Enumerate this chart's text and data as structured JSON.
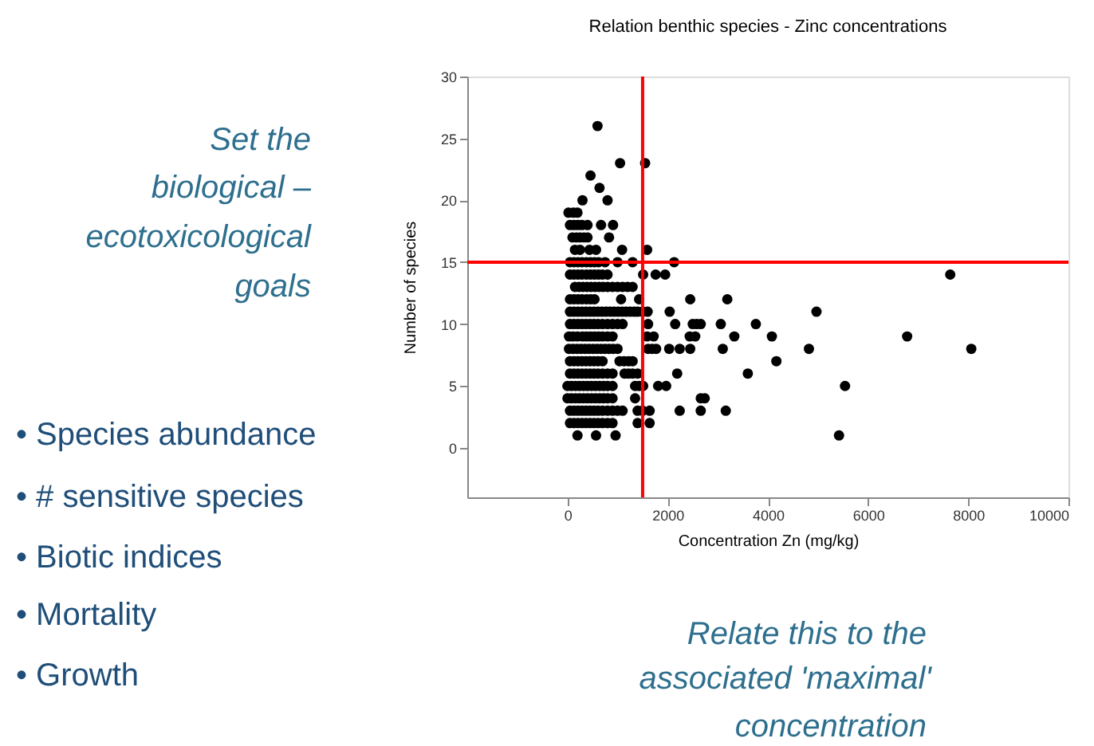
{
  "chart_data": {
    "type": "scatter",
    "title": "Relation benthic species - Zinc concentrations",
    "xlabel": "Concentration Zn (mg/kg)",
    "ylabel": "Number of species",
    "xlim": [
      -2000,
      10000
    ],
    "xticks": [
      0,
      2000,
      4000,
      6000,
      8000,
      10000
    ],
    "ylim": [
      -4,
      30
    ],
    "yticks": [
      0,
      5,
      10,
      15,
      20,
      25,
      30
    ],
    "grid": false,
    "marker": "circle",
    "series": [
      {
        "color": "#000000",
        "x": [
          600,
          1050,
          1550,
          460,
          640,
          300,
          800,
          20,
          120,
          200,
          50,
          130,
          210,
          290,
          400,
          670,
          910,
          100,
          180,
          250,
          330,
          400,
          830,
          150,
          250,
          440,
          570,
          1090,
          1590,
          50,
          130,
          210,
          290,
          380,
          460,
          540,
          620,
          750,
          1000,
          1300,
          2130,
          50,
          130,
          210,
          290,
          380,
          460,
          540,
          620,
          700,
          800,
          1510,
          1760,
          1950,
          7640,
          150,
          230,
          310,
          390,
          470,
          550,
          630,
          710,
          800,
          900,
          1000,
          1100,
          1200,
          1300,
          50,
          130,
          210,
          290,
          380,
          460,
          540,
          1070,
          1430,
          2450,
          3190,
          50,
          130,
          210,
          290,
          370,
          450,
          530,
          610,
          690,
          770,
          850,
          930,
          1010,
          1090,
          1170,
          1250,
          1330,
          1400,
          1500,
          1600,
          2040,
          4970,
          50,
          130,
          210,
          290,
          370,
          450,
          530,
          610,
          700,
          800,
          900,
          1000,
          1100,
          1610,
          2150,
          2500,
          2580,
          2660,
          3060,
          3760,
          30,
          110,
          200,
          300,
          380,
          460,
          540,
          620,
          700,
          800,
          900,
          1590,
          1720,
          2440,
          2550,
          3330,
          4080,
          6780,
          30,
          110,
          190,
          270,
          350,
          430,
          510,
          590,
          670,
          750,
          830,
          910,
          1000,
          1610,
          1690,
          1770,
          2030,
          2240,
          2450,
          3100,
          4820,
          8060,
          50,
          130,
          210,
          290,
          370,
          450,
          530,
          610,
          700,
          1040,
          1130,
          1220,
          1300,
          4170,
          50,
          130,
          210,
          290,
          370,
          450,
          530,
          610,
          700,
          800,
          900,
          1140,
          1220,
          1300,
          1400,
          2190,
          3600,
          0,
          80,
          160,
          240,
          320,
          400,
          480,
          560,
          640,
          720,
          800,
          900,
          1350,
          1430,
          1510,
          1810,
          1970,
          5540,
          0,
          80,
          160,
          240,
          320,
          400,
          480,
          560,
          640,
          720,
          800,
          900,
          1350,
          2660,
          2740,
          50,
          130,
          210,
          290,
          370,
          450,
          530,
          610,
          700,
          800,
          900,
          1000,
          1100,
          1400,
          1500,
          1640,
          2240,
          2660,
          3160,
          50,
          130,
          210,
          290,
          370,
          450,
          530,
          610,
          700,
          800,
          900,
          1400,
          1640,
          200,
          570,
          960,
          5420
        ],
        "values": [
          26,
          23,
          23,
          22,
          21,
          20,
          20,
          19,
          19,
          19,
          18,
          18,
          18,
          18,
          18,
          18,
          18,
          17,
          17,
          17,
          17,
          17,
          17,
          16,
          16,
          16,
          16,
          16,
          16,
          15,
          15,
          15,
          15,
          15,
          15,
          15,
          15,
          15,
          15,
          15,
          15,
          14,
          14,
          14,
          14,
          14,
          14,
          14,
          14,
          14,
          14,
          14,
          14,
          14,
          14,
          13,
          13,
          13,
          13,
          13,
          13,
          13,
          13,
          13,
          13,
          13,
          13,
          13,
          13,
          12,
          12,
          12,
          12,
          12,
          12,
          12,
          12,
          12,
          12,
          12,
          11,
          11,
          11,
          11,
          11,
          11,
          11,
          11,
          11,
          11,
          11,
          11,
          11,
          11,
          11,
          11,
          11,
          11,
          11,
          11,
          11,
          11,
          10,
          10,
          10,
          10,
          10,
          10,
          10,
          10,
          10,
          10,
          10,
          10,
          10,
          10,
          10,
          10,
          10,
          10,
          10,
          10,
          9,
          9,
          9,
          9,
          9,
          9,
          9,
          9,
          9,
          9,
          9,
          9,
          9,
          9,
          9,
          9,
          9,
          9,
          8,
          8,
          8,
          8,
          8,
          8,
          8,
          8,
          8,
          8,
          8,
          8,
          8,
          8,
          8,
          8,
          8,
          8,
          8,
          8,
          8,
          8,
          7,
          7,
          7,
          7,
          7,
          7,
          7,
          7,
          7,
          7,
          7,
          7,
          7,
          7,
          6,
          6,
          6,
          6,
          6,
          6,
          6,
          6,
          6,
          6,
          6,
          6,
          6,
          6,
          6,
          6,
          6,
          5,
          5,
          5,
          5,
          5,
          5,
          5,
          5,
          5,
          5,
          5,
          5,
          5,
          5,
          5,
          5,
          5,
          5,
          4,
          4,
          4,
          4,
          4,
          4,
          4,
          4,
          4,
          4,
          4,
          4,
          4,
          4,
          4,
          3,
          3,
          3,
          3,
          3,
          3,
          3,
          3,
          3,
          3,
          3,
          3,
          3,
          3,
          3,
          3,
          3,
          3,
          3,
          2,
          2,
          2,
          2,
          2,
          2,
          2,
          2,
          2,
          2,
          2,
          2,
          2,
          1,
          1,
          1,
          1
        ]
      }
    ],
    "ref_lines": [
      {
        "axis": "x",
        "value": 1500,
        "color": "#ff0000"
      },
      {
        "axis": "y",
        "value": 15,
        "color": "#ff0000"
      }
    ],
    "annotations": [
      "Set the",
      "biological –",
      "ecotoxicological",
      "goals",
      "•    Species abundance",
      "•    # sensitive species",
      "•    Biotic indices",
      "•    Mortality",
      "•    Growth",
      "Relate this to the",
      "associated 'maximal'",
      "concentration"
    ]
  }
}
